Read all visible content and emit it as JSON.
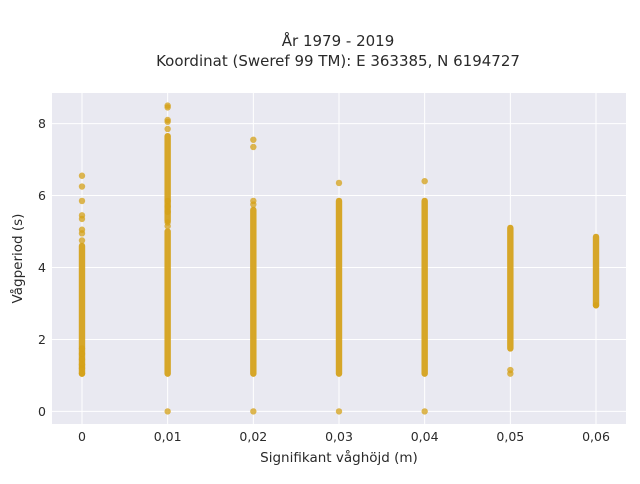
{
  "chart_data": {
    "type": "scatter",
    "title": "År 1979 - 2019",
    "subtitle": "Koordinat (Sweref 99 TM): E 363385, N 6194727",
    "xlabel": "Signifikant våghöjd (m)",
    "ylabel": "Vågperiod (s)",
    "xlim": [
      -0.0035,
      0.0635
    ],
    "ylim": [
      -0.35,
      8.85
    ],
    "x_ticks": [
      0,
      0.01,
      0.02,
      0.03,
      0.04,
      0.05,
      0.06
    ],
    "x_tick_labels": [
      "0",
      "0,01",
      "0,02",
      "0,03",
      "0,04",
      "0,05",
      "0,06"
    ],
    "y_ticks": [
      0,
      2,
      4,
      6,
      8
    ],
    "y_tick_labels": [
      "0",
      "2",
      "4",
      "6",
      "8"
    ],
    "grid": true,
    "marker_color": "#D4A017",
    "plot_background": "#E9E9F1",
    "series": [
      {
        "columns": [
          {
            "x": 0,
            "ranges": [
              [
                1.05,
                4.6
              ]
            ],
            "points": [
              1.05,
              1.2,
              1.3,
              1.45,
              1.6,
              1.75,
              4.75,
              4.95,
              5.05,
              5.35,
              5.45,
              5.85,
              6.25,
              6.55
            ]
          },
          {
            "x": 0.01,
            "ranges": [
              [
                1.05,
                5.0
              ],
              [
                5.3,
                7.65
              ]
            ],
            "points": [
              0,
              5.15,
              5.25,
              5.55,
              5.7,
              5.85,
              7.85,
              8.05,
              8.1,
              8.45,
              8.5
            ]
          },
          {
            "x": 0.02,
            "ranges": [
              [
                1.05,
                5.6
              ]
            ],
            "points": [
              0,
              5.75,
              5.85,
              7.35,
              7.55
            ]
          },
          {
            "x": 0.03,
            "ranges": [
              [
                1.05,
                5.85
              ]
            ],
            "points": [
              0,
              6.35
            ]
          },
          {
            "x": 0.04,
            "ranges": [
              [
                1.05,
                5.85
              ]
            ],
            "points": [
              0,
              6.4
            ]
          },
          {
            "x": 0.05,
            "ranges": [
              [
                1.75,
                5.1
              ]
            ],
            "points": [
              1.05,
              1.15
            ]
          },
          {
            "x": 0.06,
            "ranges": [
              [
                2.95,
                4.85
              ]
            ],
            "points": [
              2.95
            ]
          }
        ]
      }
    ]
  }
}
